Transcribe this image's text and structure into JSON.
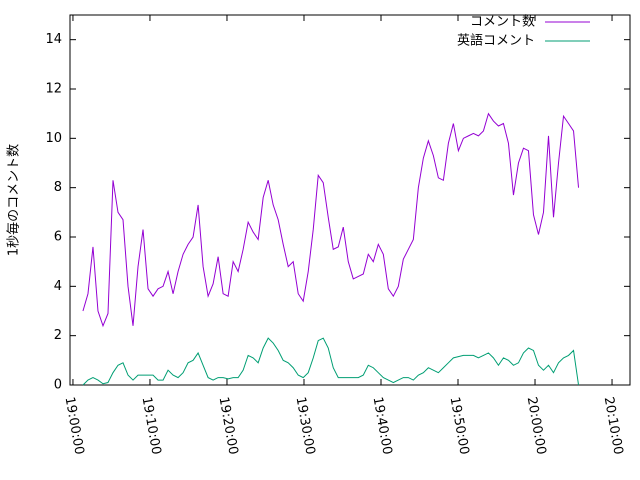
{
  "chart_data": {
    "type": "line",
    "y_label": "1秒毎のコメント数",
    "x": [
      "19:01:18",
      "19:01:57",
      "19:02:36",
      "19:03:15",
      "19:03:54",
      "19:04:33",
      "19:05:12",
      "19:05:51",
      "19:06:30",
      "19:07:09",
      "19:07:48",
      "19:08:27",
      "19:09:06",
      "19:09:45",
      "19:10:24",
      "19:11:03",
      "19:11:42",
      "19:12:21",
      "19:13:00",
      "19:13:39",
      "19:14:18",
      "19:14:57",
      "19:15:36",
      "19:16:15",
      "19:16:54",
      "19:17:33",
      "19:18:12",
      "19:18:51",
      "19:19:30",
      "19:20:09",
      "19:20:48",
      "19:21:27",
      "19:22:06",
      "19:22:45",
      "19:23:24",
      "19:24:03",
      "19:24:42",
      "19:25:21",
      "19:26:00",
      "19:26:39",
      "19:27:18",
      "19:27:57",
      "19:28:36",
      "19:29:15",
      "19:29:54",
      "19:30:33",
      "19:31:12",
      "19:31:51",
      "19:32:30",
      "19:33:09",
      "19:33:48",
      "19:34:27",
      "19:35:06",
      "19:35:45",
      "19:36:24",
      "19:37:03",
      "19:37:42",
      "19:38:21",
      "19:39:00",
      "19:39:39",
      "19:40:18",
      "19:40:57",
      "19:41:36",
      "19:42:15",
      "19:42:54",
      "19:43:33",
      "19:44:12",
      "19:44:51",
      "19:45:30",
      "19:46:09",
      "19:46:48",
      "19:47:27",
      "19:48:06",
      "19:48:45",
      "19:49:24",
      "19:50:03",
      "19:50:42",
      "19:51:21",
      "19:52:00",
      "19:52:39",
      "19:53:18",
      "19:53:57",
      "19:54:36",
      "19:55:15",
      "19:55:54",
      "19:56:33",
      "19:57:12",
      "19:57:51",
      "19:58:30",
      "19:59:09",
      "19:59:48",
      "20:00:27",
      "20:01:06",
      "20:01:45",
      "20:02:24",
      "20:03:03",
      "20:03:42",
      "20:04:21",
      "20:05:00",
      "20:05:39"
    ],
    "series": [
      {
        "name": "コメント数",
        "color": "#9400d3",
        "values": [
          3.0,
          3.7,
          5.6,
          3.0,
          2.4,
          2.9,
          8.3,
          7.0,
          6.7,
          4.0,
          2.4,
          4.8,
          6.3,
          3.9,
          3.6,
          3.9,
          4.0,
          4.6,
          3.7,
          4.6,
          5.3,
          5.7,
          6.0,
          7.3,
          4.8,
          3.6,
          4.1,
          5.2,
          3.7,
          3.6,
          5.0,
          4.6,
          5.5,
          6.6,
          6.2,
          5.9,
          7.6,
          8.3,
          7.3,
          6.7,
          5.7,
          4.8,
          5.0,
          3.7,
          3.4,
          4.6,
          6.3,
          8.5,
          8.2,
          6.8,
          5.5,
          5.6,
          6.4,
          5.0,
          4.3,
          4.4,
          4.5,
          5.3,
          5.0,
          5.7,
          5.3,
          3.9,
          3.6,
          4.0,
          5.1,
          5.5,
          5.9,
          8.0,
          9.2,
          9.9,
          9.3,
          8.4,
          8.3,
          9.8,
          10.6,
          9.5,
          10.0,
          10.1,
          10.2,
          10.1,
          10.3,
          11.0,
          10.7,
          10.5,
          10.6,
          9.8,
          7.7,
          9.0,
          9.6,
          9.5,
          6.9,
          6.1,
          7.0,
          10.1,
          6.8,
          9.0,
          10.9,
          10.6,
          10.3,
          8.0
        ]
      },
      {
        "name": "英語コメント",
        "color": "#009e73",
        "values": [
          0.0,
          0.2,
          0.3,
          0.2,
          0.05,
          0.1,
          0.5,
          0.8,
          0.9,
          0.4,
          0.2,
          0.4,
          0.4,
          0.4,
          0.4,
          0.2,
          0.2,
          0.6,
          0.4,
          0.3,
          0.5,
          0.9,
          1.0,
          1.3,
          0.8,
          0.3,
          0.2,
          0.3,
          0.3,
          0.25,
          0.3,
          0.3,
          0.6,
          1.2,
          1.1,
          0.9,
          1.5,
          1.9,
          1.7,
          1.4,
          1.0,
          0.9,
          0.7,
          0.4,
          0.3,
          0.5,
          1.1,
          1.8,
          1.9,
          1.5,
          0.7,
          0.3,
          0.3,
          0.3,
          0.3,
          0.3,
          0.4,
          0.8,
          0.7,
          0.5,
          0.3,
          0.2,
          0.1,
          0.2,
          0.3,
          0.3,
          0.2,
          0.4,
          0.5,
          0.7,
          0.6,
          0.5,
          0.7,
          0.9,
          1.1,
          1.15,
          1.2,
          1.2,
          1.2,
          1.1,
          1.2,
          1.3,
          1.1,
          0.8,
          1.1,
          1.0,
          0.8,
          0.9,
          1.3,
          1.5,
          1.4,
          0.8,
          0.6,
          0.8,
          0.5,
          0.9,
          1.1,
          1.2,
          1.4,
          0.0
        ]
      }
    ],
    "xlim": [
      "18:59:37",
      "20:12:20"
    ],
    "xticks": [
      "19:00:00",
      "19:10:00",
      "19:20:00",
      "19:30:00",
      "19:40:00",
      "19:50:00",
      "20:00:00",
      "20:10:00"
    ],
    "ylim": [
      0,
      15
    ],
    "yticks": [
      0,
      2,
      4,
      6,
      8,
      10,
      12,
      14
    ],
    "legend": "top-right",
    "grid": false
  }
}
